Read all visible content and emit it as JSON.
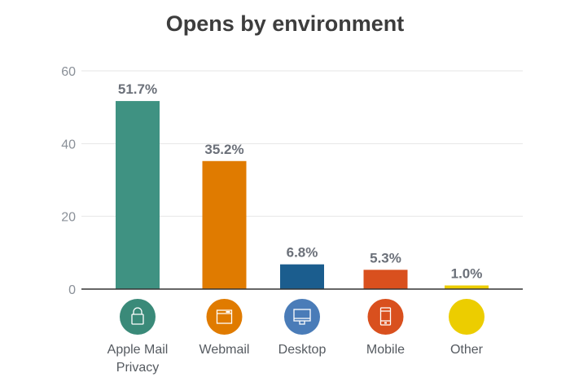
{
  "chart_data": {
    "type": "bar",
    "title": "Opens by environment",
    "categories": [
      "Apple Mail Privacy",
      "Webmail",
      "Desktop",
      "Mobile",
      "Other"
    ],
    "category_lines": [
      [
        "Apple Mail",
        "Privacy"
      ],
      [
        "Webmail"
      ],
      [
        "Desktop"
      ],
      [
        "Mobile"
      ],
      [
        "Other"
      ]
    ],
    "values": [
      51.7,
      35.2,
      6.8,
      5.3,
      1.0
    ],
    "data_labels": [
      "51.7%",
      "35.2%",
      "6.8%",
      "5.3%",
      "1.0%"
    ],
    "bar_colors": [
      "#3f9282",
      "#e07b00",
      "#1b5d8e",
      "#d9501e",
      "#eccd00"
    ],
    "icon_colors": [
      "#3a8a79",
      "#e07b00",
      "#4a7cb8",
      "#d9501e",
      "#eccd00"
    ],
    "icons": [
      "lock-icon",
      "browser-window-icon",
      "desktop-monitor-icon",
      "mobile-phone-icon",
      ""
    ],
    "yticks": [
      0,
      20,
      40,
      60
    ],
    "ylim": [
      0,
      60
    ],
    "xlabel": "",
    "ylabel": "",
    "grid": true,
    "legend": "none"
  }
}
